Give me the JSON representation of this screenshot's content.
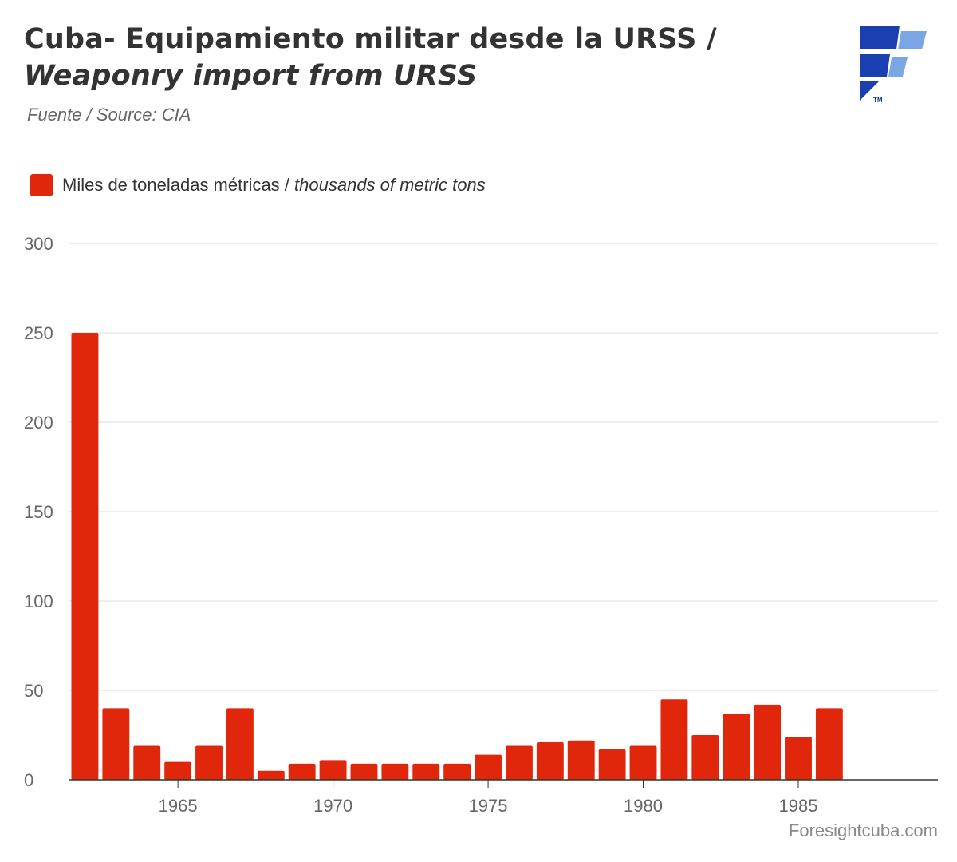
{
  "header": {
    "title_line1": "Cuba- Equipamiento militar desde la URSS /",
    "title_line2": "Weaponry import from URSS",
    "source": "Fuente / Source: CIA"
  },
  "legend": {
    "label_es": "Miles de toneladas métricas",
    "separator": " / ",
    "label_en": "thousands of metric tons"
  },
  "credit": "Foresightcuba.com",
  "colors": {
    "bar": "#e0270c",
    "logo_dark": "#1a3fb0",
    "logo_light": "#7aa6e6",
    "grid": "#dddddd",
    "axis": "#333333"
  },
  "chart_data": {
    "type": "bar",
    "x": [
      1962,
      1963,
      1964,
      1965,
      1966,
      1967,
      1968,
      1969,
      1970,
      1971,
      1972,
      1973,
      1974,
      1975,
      1976,
      1977,
      1978,
      1979,
      1980,
      1981,
      1982,
      1983,
      1984,
      1985,
      1986
    ],
    "series": [
      {
        "name": "Miles de toneladas métricas / thousands of metric tons",
        "values": [
          250,
          40,
          19,
          10,
          19,
          40,
          5,
          9,
          11,
          9,
          9,
          9,
          9,
          14,
          19,
          21,
          22,
          17,
          19,
          45,
          25,
          37,
          42,
          24,
          40
        ]
      }
    ],
    "xlim": [
      1961.5,
      1989.5
    ],
    "ylim": [
      0,
      300
    ],
    "yticks": [
      0,
      50,
      100,
      150,
      200,
      250,
      300
    ],
    "xticks": [
      1965,
      1970,
      1975,
      1980,
      1985
    ],
    "grid": true,
    "legend_position": "top-left"
  }
}
